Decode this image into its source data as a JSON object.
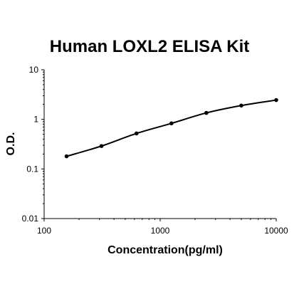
{
  "chart_data": {
    "type": "line",
    "title": "Human LOXL2 ELISA Kit",
    "xlabel": "Concentration(pg/ml)",
    "ylabel": "O.D.",
    "x_scale": "log",
    "y_scale": "log",
    "xlim": [
      100,
      10000
    ],
    "ylim": [
      0.01,
      10
    ],
    "x_ticks": [
      "100",
      "1000",
      "10000"
    ],
    "y_ticks": [
      "0.01",
      "0.1",
      "1",
      "10"
    ],
    "grid": false,
    "legend": "none",
    "series": [
      {
        "x": [
          156,
          312,
          625,
          1250,
          2500,
          5000,
          10000
        ],
        "y": [
          0.18,
          0.29,
          0.52,
          0.83,
          1.35,
          1.9,
          2.45
        ]
      }
    ]
  }
}
